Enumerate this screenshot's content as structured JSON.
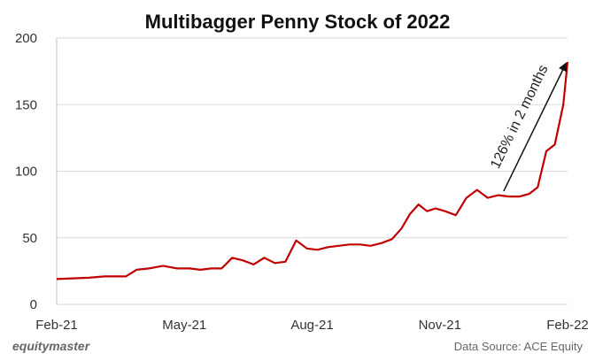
{
  "chart_data": {
    "type": "line",
    "title": "Multibagger Penny Stock of 2022",
    "xlabel": "",
    "ylabel": "",
    "ylim": [
      0,
      200
    ],
    "y_ticks": [
      0,
      50,
      100,
      150,
      200
    ],
    "x_ticks": [
      "Feb-21",
      "May-21",
      "Aug-21",
      "Nov-21",
      "Feb-22"
    ],
    "grid": "horizontal",
    "line_color": "#c00000",
    "series": [
      {
        "name": "",
        "x": [
          "Feb-21",
          "Feb-21",
          "Mar-21",
          "Mar-21",
          "Mar-21",
          "Mar-21",
          "Apr-21",
          "Apr-21",
          "Apr-21",
          "May-21",
          "May-21",
          "May-21",
          "May-21",
          "Jun-21",
          "Jun-21",
          "Jun-21",
          "Jun-21",
          "Jul-21",
          "Jul-21",
          "Jul-21",
          "Jul-21",
          "Aug-21",
          "Aug-21",
          "Aug-21",
          "Aug-21",
          "Sep-21",
          "Sep-21",
          "Sep-21",
          "Sep-21",
          "Oct-21",
          "Oct-21",
          "Oct-21",
          "Oct-21",
          "Oct-21",
          "Nov-21",
          "Nov-21",
          "Nov-21",
          "Nov-21",
          "Dec-21",
          "Dec-21",
          "Dec-21",
          "Dec-21",
          "Jan-22",
          "Jan-22",
          "Jan-22",
          "Jan-22",
          "Jan-22",
          "Feb-22"
        ],
        "values": [
          19,
          20,
          21,
          21,
          21,
          26,
          27,
          29,
          27,
          27,
          26,
          27,
          27,
          35,
          33,
          30,
          35,
          31,
          32,
          48,
          42,
          41,
          43,
          44,
          45,
          45,
          44,
          46,
          49,
          57,
          68,
          75,
          70,
          72,
          70,
          67,
          80,
          86,
          80,
          82,
          81,
          81,
          83,
          88,
          115,
          120,
          150,
          182
        ]
      }
    ],
    "annotation": {
      "text": "126% in 2 months",
      "arrow_from": [
        "Dec-21",
        85
      ],
      "arrow_to": [
        "Feb-22",
        182
      ]
    },
    "footer": {
      "brand": "equitymaster",
      "source": "Data Source: ACE Equity"
    }
  }
}
